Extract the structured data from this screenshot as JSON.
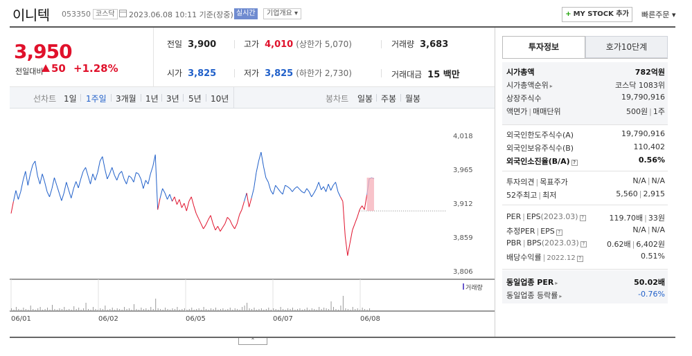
{
  "header": {
    "name": "이니텍",
    "code": "053350",
    "market": "코스닥",
    "datetime": "2023.06.08 10:11 기준(장중)",
    "realtime": "실시간",
    "company_info": "기업개요 ▾",
    "mystock": "MY STOCK 추가",
    "quick_order": "빠른주문 ▾"
  },
  "price": {
    "current": "3,950",
    "vs_label": "전일대비",
    "change": "50",
    "rate": "+1.28%"
  },
  "stats": {
    "prev_label": "전일",
    "prev": "3,900",
    "high_label": "고가",
    "high": "4,010",
    "upper_label": "(상한가",
    "upper": "5,070)",
    "volume_label": "거래량",
    "volume": "3,683",
    "open_label": "시가",
    "open": "3,825",
    "low_label": "저가",
    "low": "3,825",
    "lower_label": "(하한가",
    "lower": "2,730)",
    "amount_label": "거래대금",
    "amount": "15 백만"
  },
  "period_bar": {
    "line_label": "선차트",
    "periods": [
      "1일",
      "1주일",
      "3개월",
      "1년",
      "3년",
      "5년",
      "10년"
    ],
    "selected": "1주일",
    "candle_label": "봉차트",
    "candles": [
      "일봉",
      "주봉",
      "월봉"
    ]
  },
  "chart_data": {
    "type": "line",
    "y_ticks": [
      "4,018",
      "3,965",
      "3,912",
      "3,859",
      "3,806"
    ],
    "ylim": [
      3806,
      4018
    ],
    "x_ticks": [
      "06/01",
      "06/02",
      "06/05",
      "06/07",
      "06/08"
    ],
    "volume_label": "거래량",
    "prev_close": 3900,
    "up_color": "#e0112b",
    "down_color": "#1f5fc9",
    "series": [
      {
        "values": [
          3896,
          3915,
          3932,
          3918,
          3930,
          3948,
          3962,
          3940,
          3958,
          3972,
          3978,
          3955,
          3942,
          3958,
          3945,
          3930,
          3922,
          3935,
          3952,
          3940,
          3928,
          3916,
          3928,
          3945,
          3932,
          3920,
          3935,
          3946,
          3936,
          3950,
          3962,
          3968,
          3955,
          3942,
          3958,
          3948,
          3960,
          3978,
          3985,
          3966,
          3950,
          3958,
          3968,
          3956,
          3948,
          3958,
          3962,
          3950,
          3942,
          3955,
          3952,
          3945,
          3960,
          3958,
          3950,
          3935,
          3948,
          3942,
          3958,
          3970,
          3988,
          3902,
          3920,
          3935,
          3928,
          3918,
          3926,
          3915,
          3922,
          3910,
          3918,
          3905,
          3912,
          3900,
          3915,
          3922,
          3908,
          3896,
          3888,
          3880,
          3872,
          3878,
          3886,
          3893,
          3880,
          3870,
          3876,
          3868,
          3874,
          3880,
          3890,
          3886,
          3878,
          3872,
          3880,
          3894,
          3902,
          3915,
          3928,
          3906,
          3920,
          3935,
          3960,
          3978,
          3992,
          3970,
          3952,
          3945,
          3932,
          3926,
          3940,
          3935,
          3930,
          3926,
          3940,
          3938,
          3935,
          3930,
          3935,
          3938,
          3934,
          3930,
          3928,
          3935,
          3930,
          3922,
          3928,
          3935,
          3945,
          3933,
          3938,
          3930,
          3942,
          3932,
          3940,
          3945,
          3930,
          3922,
          3915,
          3860,
          3830,
          3850,
          3870,
          3880,
          3890,
          3902,
          3908,
          3902,
          3925,
          3950,
          3952,
          3950
        ]
      }
    ]
  },
  "panel": {
    "tab_active": "투자정보",
    "tab_other": "호가10단계",
    "market_cap_label": "시가총액",
    "market_cap": "782억원",
    "cap_rank_label": "시가총액순위",
    "cap_rank": "코스닥 1083위",
    "shares_label": "상장주식수",
    "shares": "19,790,916",
    "par_label": "액면가",
    "unit_label": "매매단위",
    "par": "500원",
    "unit": "1주",
    "foreign_limit_label": "외국인한도주식수(A)",
    "foreign_limit": "19,790,916",
    "foreign_hold_label": "외국인보유주식수(B)",
    "foreign_hold": "110,402",
    "foreign_ratio_label": "외국인소진율(B/A)",
    "foreign_ratio": "0.56%",
    "opinion_label": "투자의견",
    "target_label": "목표주가",
    "opinion": "N/A",
    "target": "N/A",
    "w52_hi_label": "52주최고",
    "w52_lo_label": "최저",
    "w52_hi": "5,560",
    "w52_lo": "2,915",
    "per_label": "PER",
    "eps_label": "EPS",
    "eps_year": "(2023.03)",
    "per": "119.70배",
    "eps": "33원",
    "est_per_label": "추정PER",
    "est_eps_label": "EPS",
    "est_per": "N/A",
    "est_eps": "N/A",
    "pbr_label": "PBR",
    "bps_label": "BPS",
    "bps_year": "(2023.03)",
    "pbr": "0.62배",
    "bps": "6,402원",
    "div_label": "배당수익률",
    "div_year": "2022.12",
    "div": "0.51%",
    "ind_per_label": "동일업종 PER",
    "ind_per": "50.02배",
    "ind_rate_label": "동일업종 등락률",
    "ind_rate": "-0.76%",
    "q_mark": "?",
    "arrow_mark": "▸"
  },
  "collapse": "⌃"
}
